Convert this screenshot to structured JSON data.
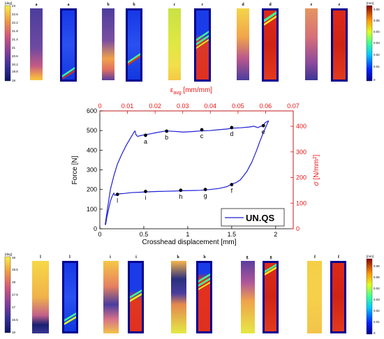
{
  "chart_data": {
    "type": "line",
    "title": "",
    "xlabel": "Crosshead displacement [mm]",
    "ylabel": "Force [N]",
    "xlim": [
      0,
      2.2
    ],
    "ylim": [
      0,
      600
    ],
    "x_ticks": [
      "0",
      "0.5",
      "1",
      "1.5",
      "2"
    ],
    "y_ticks": [
      "0",
      "100",
      "200",
      "300",
      "400",
      "500",
      "600"
    ],
    "x2label_parts": [
      "ε",
      "avg",
      " [mm/mm]"
    ],
    "x2lim": [
      0,
      0.07
    ],
    "x2_ticks": [
      "0",
      "0.01",
      "0.02",
      "0.03",
      "0.04",
      "0.05",
      "0.06",
      "0.07"
    ],
    "y2label_parts": [
      "σ",
      " [N/mm",
      "2",
      "]"
    ],
    "y2lim": [
      0,
      460
    ],
    "y2_ticks": [
      "0",
      "100",
      "200",
      "300",
      "400"
    ],
    "legend": {
      "label": "UN.QS",
      "placement": "bottom-right"
    },
    "grid": false,
    "colors": {
      "series": "#1f1fd6",
      "secondary_axes": "#ee1111"
    },
    "series": [
      {
        "name": "UN.QS",
        "loading": {
          "x": [
            0.06,
            0.09,
            0.12,
            0.16,
            0.2,
            0.25,
            0.3,
            0.34,
            0.37,
            0.39,
            0.4,
            0.41,
            0.43,
            0.46,
            0.5,
            0.56,
            0.65,
            0.75,
            0.85,
            0.95,
            1.05,
            1.15,
            1.25,
            1.35,
            1.45,
            1.5,
            1.6,
            1.7,
            1.75,
            1.8,
            1.82,
            1.86,
            1.88,
            1.9,
            1.92
          ],
          "y": [
            20,
            110,
            200,
            270,
            330,
            380,
            425,
            455,
            478,
            493,
            498,
            480,
            470,
            474,
            478,
            482,
            490,
            498,
            496,
            492,
            495,
            498,
            500,
            504,
            508,
            512,
            514,
            518,
            522,
            515,
            520,
            525,
            540,
            545,
            550
          ]
        },
        "unloading": {
          "x": [
            1.92,
            1.9,
            1.86,
            1.82,
            1.78,
            1.73,
            1.67,
            1.6,
            1.55,
            1.5,
            1.45,
            1.35,
            1.25,
            1.15,
            1.05,
            0.95,
            0.85,
            0.75,
            0.65,
            0.55,
            0.45,
            0.35,
            0.28,
            0.22,
            0.19,
            0.17,
            0.16,
            0.14,
            0.12,
            0.1,
            0.08,
            0.065
          ],
          "y": [
            550,
            530,
            490,
            445,
            395,
            340,
            290,
            250,
            235,
            228,
            215,
            205,
            200,
            196,
            195,
            194,
            192,
            191,
            190,
            188,
            186,
            184,
            180,
            178,
            175,
            170,
            182,
            165,
            140,
            100,
            60,
            20
          ]
        }
      }
    ],
    "points": [
      {
        "label": "a",
        "x": 0.52,
        "y": 476
      },
      {
        "label": "b",
        "x": 0.76,
        "y": 497
      },
      {
        "label": "c",
        "x": 1.16,
        "y": 504
      },
      {
        "label": "d",
        "x": 1.5,
        "y": 515
      },
      {
        "label": "e",
        "x": 1.86,
        "y": 525
      },
      {
        "label": "f",
        "x": 1.5,
        "y": 225
      },
      {
        "label": "g",
        "x": 1.2,
        "y": 200
      },
      {
        "label": "h",
        "x": 0.92,
        "y": 196
      },
      {
        "label": "i",
        "x": 0.52,
        "y": 190
      },
      {
        "label": "l",
        "x": 0.2,
        "y": 175
      }
    ]
  },
  "top_row": {
    "temp_colorbar": {
      "unit": "[deg]",
      "ticks": [
        "23",
        "22.6",
        "22.2",
        "21.8",
        "21.4",
        "21",
        "20.6",
        "20.2",
        "19.8",
        "19"
      ]
    },
    "disp_colorbar": {
      "unit": "[mm]",
      "ticks": [
        "0.06",
        "0.05",
        "0.04",
        "0.03",
        "0.02",
        "0.01",
        "0"
      ]
    },
    "pairs": [
      {
        "label": "a",
        "thermal_label": "a",
        "strain_label": "a"
      },
      {
        "label": "b",
        "thermal_label": "b",
        "strain_label": "b"
      },
      {
        "label": "c",
        "thermal_label": "c",
        "strain_label": "c"
      },
      {
        "label": "d",
        "thermal_label": "d",
        "strain_label": "d"
      },
      {
        "label": "e",
        "thermal_label": "e",
        "strain_label": "e"
      }
    ]
  },
  "bottom_row": {
    "temp_colorbar": {
      "unit": "[deg]",
      "ticks": [
        "19",
        "18.5",
        "18",
        "17.5",
        "17",
        "16.5",
        "16"
      ]
    },
    "disp_colorbar": {
      "unit": "[mm]",
      "ticks": [
        "0.06",
        "0.05",
        "0.04",
        "0.03",
        "0.02",
        "0.01",
        "0"
      ]
    },
    "pairs": [
      {
        "label": "l",
        "thermal_label": "l",
        "strain_label": "l"
      },
      {
        "label": "i",
        "thermal_label": "i",
        "strain_label": "i"
      },
      {
        "label": "h",
        "thermal_label": "h",
        "strain_label": "h"
      },
      {
        "label": "g",
        "thermal_label": "g",
        "strain_label": "g"
      },
      {
        "label": "f",
        "thermal_label": "f",
        "strain_label": "f"
      }
    ]
  }
}
